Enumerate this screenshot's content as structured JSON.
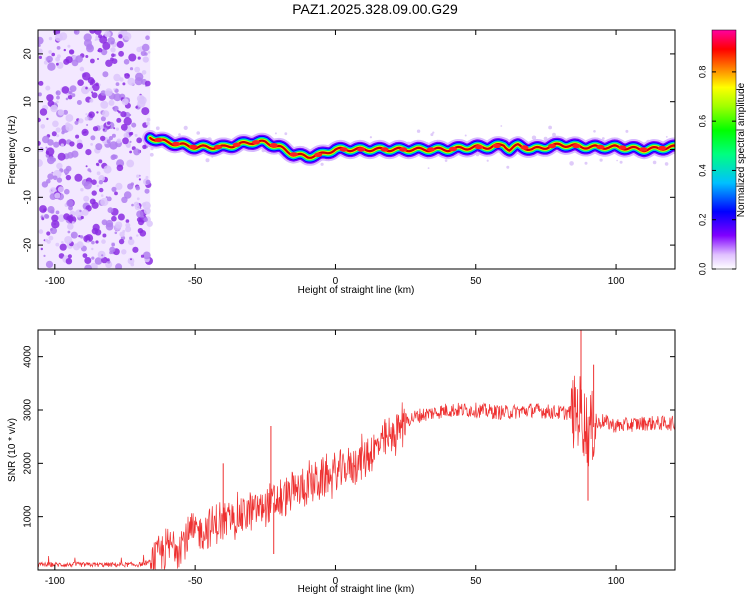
{
  "figure_title": "PAZ1.2025.328.09.00.G29",
  "colors": {
    "signal": "#d00000",
    "snr_line": "#ee3030",
    "axis": "#000000"
  },
  "chart_data": [
    {
      "type": "heatmap",
      "title": "PAZ1.2025.328.09.00.G29",
      "xlabel": "Height of straight line (km)",
      "ylabel": "Frequency (Hz)",
      "xlim": [
        -106,
        121
      ],
      "ylim": [
        -25,
        25
      ],
      "xticks": [
        -100,
        -50,
        0,
        50,
        100
      ],
      "yticks": [
        -20,
        -10,
        0,
        10,
        20
      ],
      "noise_region_x": [
        -106,
        -66
      ],
      "ridge": {
        "x": [
          -66,
          -60,
          -50,
          -40,
          -30,
          -25,
          -20,
          -15,
          -10,
          -5,
          0,
          10,
          20,
          30,
          40,
          50,
          55,
          60,
          62,
          65,
          70,
          80,
          90,
          100,
          110,
          121
        ],
        "y": [
          2.5,
          1.5,
          0.5,
          0.5,
          1.5,
          1.5,
          0.5,
          -1,
          -1.5,
          -1,
          0,
          0,
          0,
          0,
          0,
          0.5,
          0.5,
          1,
          0,
          0.8,
          0,
          1,
          0.5,
          0.5,
          0,
          0.5
        ]
      },
      "colorbar": {
        "label": "Normalized spectral amplitude",
        "range": [
          0,
          0.97
        ],
        "ticks": [
          "0.0",
          "0.2",
          "0.4",
          "0.6",
          "0.8"
        ]
      }
    },
    {
      "type": "line",
      "series_name": "SNR",
      "xlabel": "Height of straight line (km)",
      "ylabel": "SNR (10 * v/v)",
      "xlim": [
        -106,
        121
      ],
      "ylim": [
        0,
        4500
      ],
      "xticks": [
        -100,
        -50,
        0,
        50,
        100
      ],
      "yticks": [
        1000,
        2000,
        3000,
        4000
      ],
      "envelope": {
        "x": [
          -106,
          -90,
          -80,
          -70,
          -66,
          -60,
          -50,
          -40,
          -30,
          -20,
          -10,
          0,
          10,
          20,
          25,
          30,
          40,
          50,
          60,
          70,
          80,
          85,
          87,
          90,
          95,
          100,
          110,
          121
        ],
        "y": [
          100,
          100,
          100,
          100,
          150,
          400,
          700,
          900,
          1100,
          1300,
          1600,
          1800,
          2100,
          2500,
          2800,
          2900,
          3000,
          3000,
          2950,
          3000,
          2950,
          2950,
          3000,
          2600,
          2800,
          2700,
          2750,
          2750
        ]
      },
      "spikes": [
        {
          "x": -40,
          "y": 2000
        },
        {
          "x": -23,
          "y": 2700
        },
        {
          "x": -22,
          "y": 300
        },
        {
          "x": 87.5,
          "y": 4500
        },
        {
          "x": 90,
          "y": 1300
        },
        {
          "x": 92,
          "y": 3850
        }
      ]
    }
  ]
}
